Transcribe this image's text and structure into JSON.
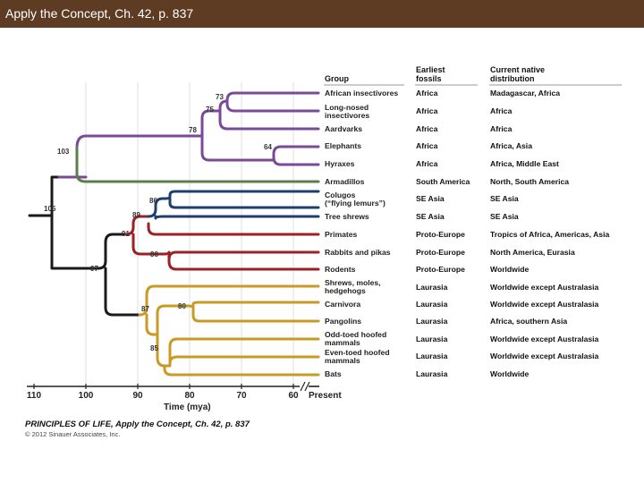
{
  "header": {
    "title": "Apply the Concept, Ch. 42, p. 837"
  },
  "columns": {
    "group": "Group",
    "fossils_1": "Earliest",
    "fossils_2": "fossils",
    "distribution_1": "Current native",
    "distribution_2": "distribution"
  },
  "colors": {
    "afrotheria": "#7a4a98",
    "xenarthra": "#5a7f4a",
    "euarchontoglires_blue": "#1e3f6e",
    "euarchontoglires_red": "#9b2126",
    "laurasiatheria": "#c99a24",
    "stem": "#1a1a1a"
  },
  "taxa": [
    {
      "name": [
        "African insectivores"
      ],
      "fossils": "Africa",
      "distribution": "Madagascar, Africa"
    },
    {
      "name": [
        "Long-nosed",
        "insectivores"
      ],
      "fossils": "Africa",
      "distribution": "Africa"
    },
    {
      "name": [
        "Aardvarks"
      ],
      "fossils": "Africa",
      "distribution": "Africa"
    },
    {
      "name": [
        "Elephants"
      ],
      "fossils": "Africa",
      "distribution": "Africa, Asia"
    },
    {
      "name": [
        "Hyraxes"
      ],
      "fossils": "Africa",
      "distribution": "Africa, Middle East"
    },
    {
      "name": [
        "Armadillos"
      ],
      "fossils": "South America",
      "distribution": "North, South America"
    },
    {
      "name": [
        "Colugos",
        "(“flying lemurs”)"
      ],
      "fossils": "SE Asia",
      "distribution": "SE Asia"
    },
    {
      "name": [
        "Tree shrews"
      ],
      "fossils": "SE Asia",
      "distribution": "SE Asia"
    },
    {
      "name": [
        "Primates"
      ],
      "fossils": "Proto-Europe",
      "distribution": "Tropics of Africa, Americas, Asia"
    },
    {
      "name": [
        "Rabbits and pikas"
      ],
      "fossils": "Proto-Europe",
      "distribution": "North America, Eurasia"
    },
    {
      "name": [
        "Rodents"
      ],
      "fossils": "Proto-Europe",
      "distribution": "Worldwide"
    },
    {
      "name": [
        "Shrews, moles,",
        "hedgehogs"
      ],
      "fossils": "Laurasia",
      "distribution": "Worldwide except Australasia"
    },
    {
      "name": [
        "Carnivora"
      ],
      "fossils": "Laurasia",
      "distribution": "Worldwide except Australasia"
    },
    {
      "name": [
        "Pangolins"
      ],
      "fossils": "Laurasia",
      "distribution": "Africa, southern Asia"
    },
    {
      "name": [
        "Odd-toed hoofed",
        "mammals"
      ],
      "fossils": "Laurasia",
      "distribution": "Worldwide except Australasia"
    },
    {
      "name": [
        "Even-toed hoofed",
        "mammals"
      ],
      "fossils": "Laurasia",
      "distribution": "Worldwide except Australasia"
    },
    {
      "name": [
        "Bats"
      ],
      "fossils": "Laurasia",
      "distribution": "Worldwide"
    }
  ],
  "nodes": [
    {
      "label": "73",
      "mya": 73
    },
    {
      "label": "75",
      "mya": 75
    },
    {
      "label": "78",
      "mya": 78
    },
    {
      "label": "64",
      "mya": 64
    },
    {
      "label": "103",
      "mya": 103
    },
    {
      "label": "105",
      "mya": 105
    },
    {
      "label": "86",
      "mya": 86
    },
    {
      "label": "89",
      "mya": 89
    },
    {
      "label": "91",
      "mya": 91
    },
    {
      "label": "86",
      "mya": 86
    },
    {
      "label": "97",
      "mya": 97
    },
    {
      "label": "87",
      "mya": 87
    },
    {
      "label": "80",
      "mya": 80
    },
    {
      "label": "85",
      "mya": 85
    }
  ],
  "axis": {
    "ticks": [
      "110",
      "100",
      "90",
      "80",
      "70",
      "60"
    ],
    "present_label": "Present",
    "title": "Time (mya)"
  },
  "footer": {
    "title": "PRINCIPLES OF LIFE, Apply the Concept, Ch. 42, p. 837",
    "copyright": "© 2012 Sinauer Associates, Inc."
  }
}
